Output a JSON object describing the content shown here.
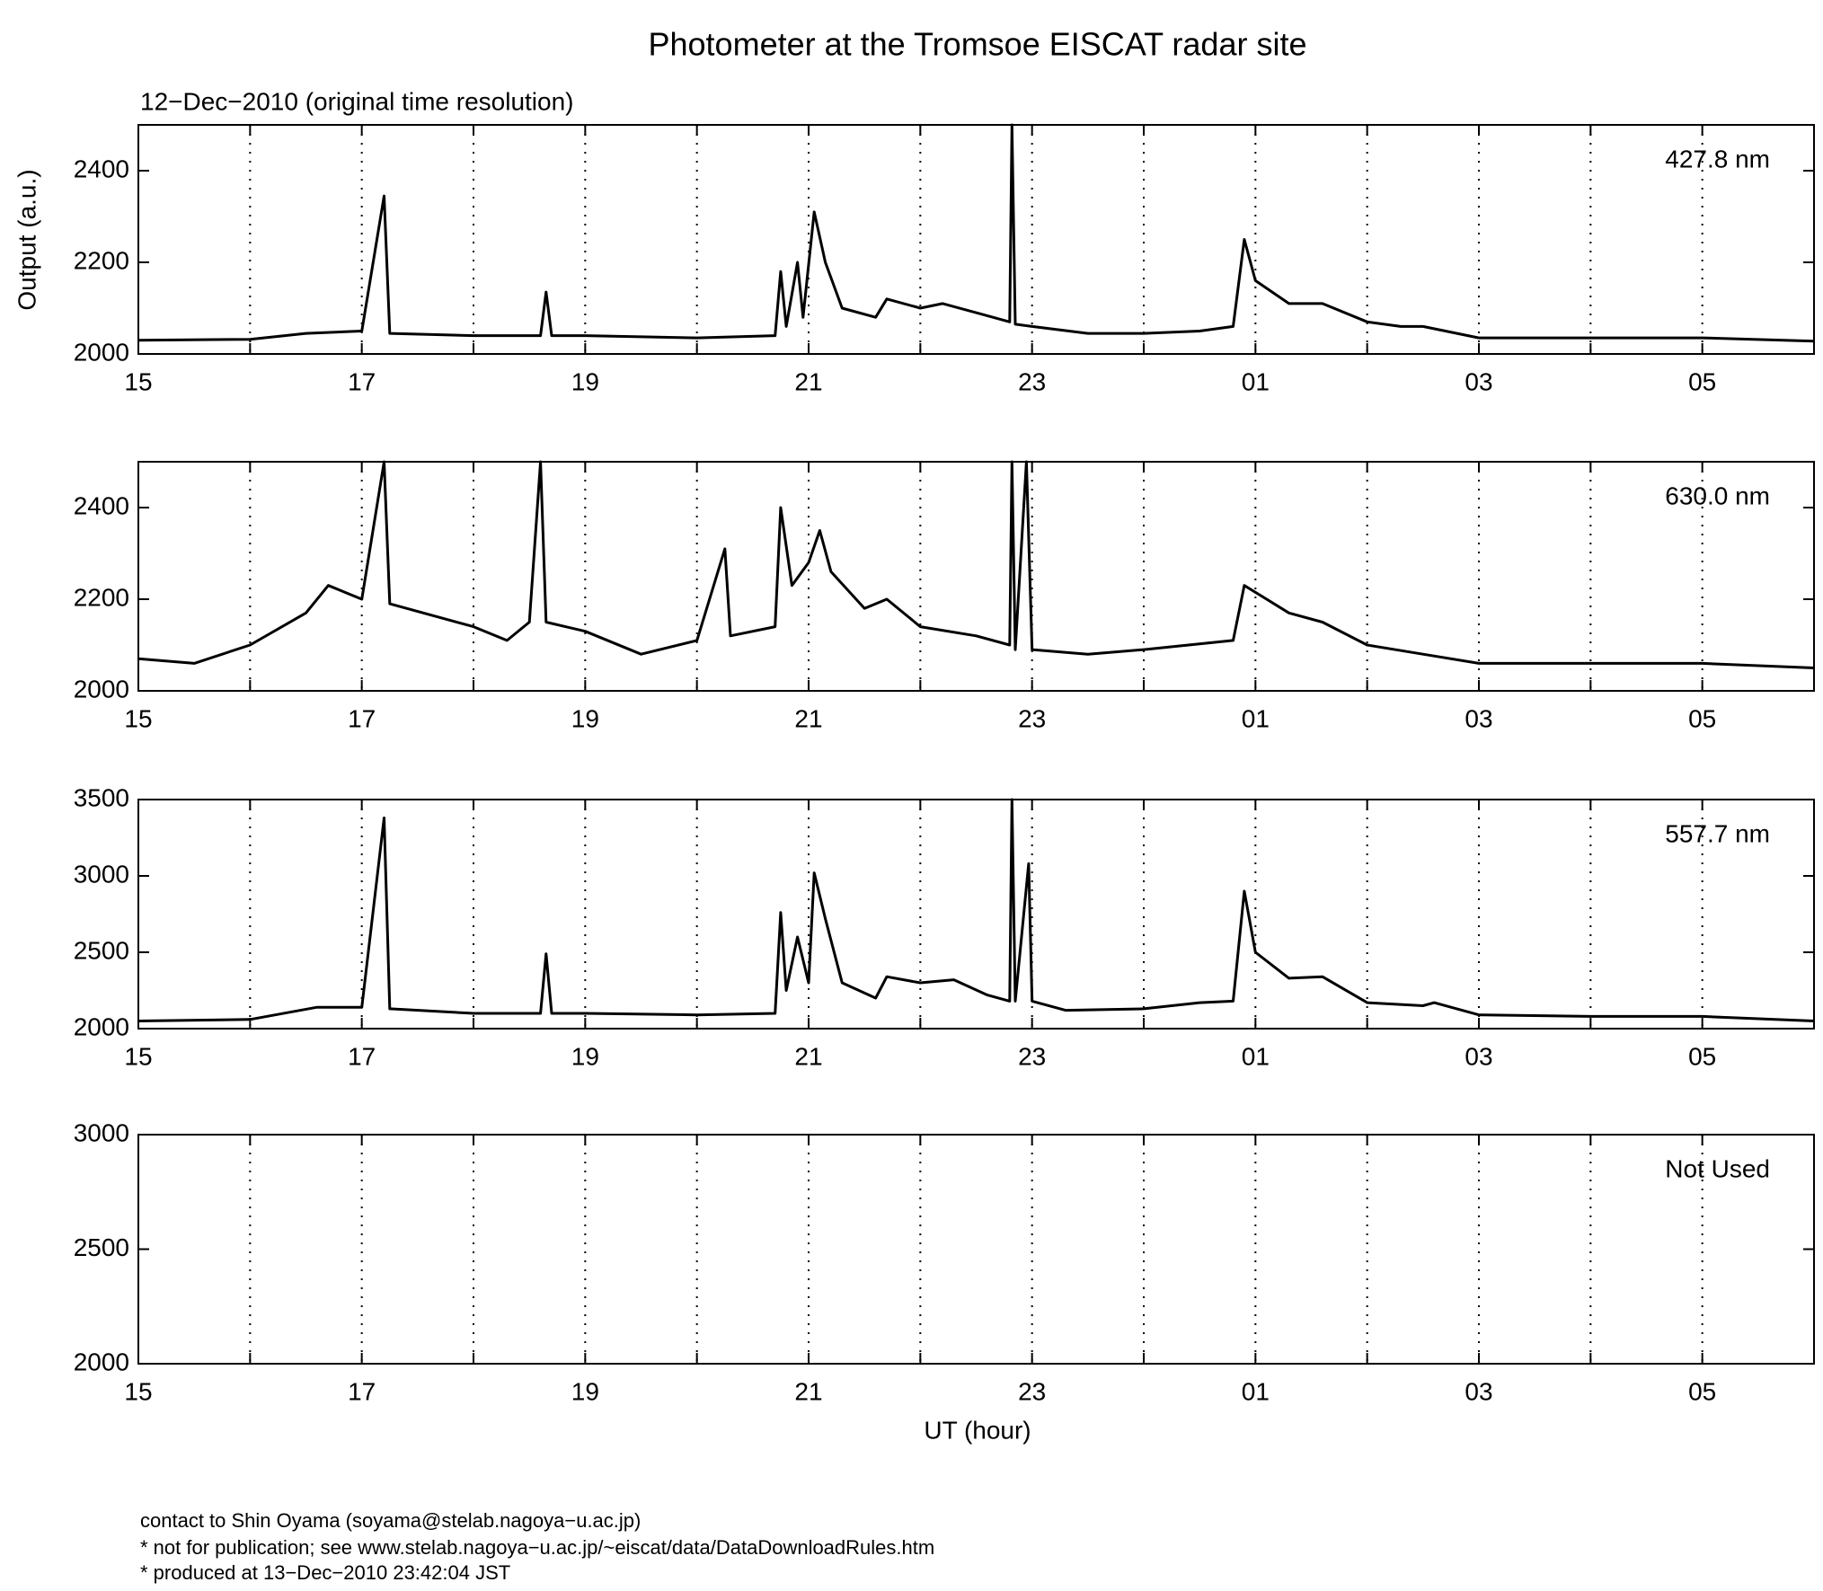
{
  "title": "Photometer at the Tromsoe EISCAT radar site",
  "subtitle": "12−Dec−2010 (original time resolution)",
  "ylabel": "Output (a.u.)",
  "xlabel": "UT (hour)",
  "footer": [
    "contact to Shin Oyama (soyama@stelab.nagoya−u.ac.jp)",
    "* not for publication; see www.stelab.nagoya−u.ac.jp/~eiscat/data/DataDownloadRules.htm",
    "* produced at 13−Dec−2010 23:42:04 JST"
  ],
  "chart_data": [
    {
      "type": "line",
      "label": "427.8 nm",
      "color": "#000000",
      "grid": true,
      "xlim": [
        15,
        30
      ],
      "xticks": [
        15,
        17,
        19,
        21,
        23,
        {
          "value": 25,
          "label": "01"
        },
        {
          "value": 27,
          "label": "03"
        },
        {
          "value": 29,
          "label": "05"
        }
      ],
      "xminorticks": [
        16,
        18,
        20,
        22,
        24,
        26,
        28
      ],
      "ylim": [
        2000,
        2500
      ],
      "yticks": [
        2000,
        2200,
        2400
      ],
      "x": [
        15,
        16,
        16.5,
        17,
        17.2,
        17.25,
        18,
        18.6,
        18.65,
        18.7,
        19,
        20,
        20.7,
        20.75,
        20.8,
        20.9,
        20.95,
        21.05,
        21.15,
        21.3,
        21.6,
        21.7,
        22,
        22.2,
        22.5,
        22.8,
        22.82,
        22.85,
        23,
        23.5,
        24,
        24.5,
        24.8,
        24.9,
        25,
        25.3,
        25.6,
        26,
        26.3,
        26.5,
        27,
        28,
        29,
        30
      ],
      "values": [
        2030,
        2032,
        2045,
        2050,
        2345,
        2045,
        2040,
        2040,
        2135,
        2040,
        2040,
        2035,
        2040,
        2180,
        2060,
        2200,
        2080,
        2310,
        2200,
        2100,
        2080,
        2120,
        2100,
        2110,
        2090,
        2070,
        2500,
        2065,
        2060,
        2045,
        2045,
        2050,
        2060,
        2250,
        2160,
        2110,
        2110,
        2070,
        2060,
        2060,
        2035,
        2035,
        2035,
        2028
      ]
    },
    {
      "type": "line",
      "label": "630.0 nm",
      "color": "#000000",
      "grid": true,
      "xlim": [
        15,
        30
      ],
      "xticks": [
        15,
        17,
        19,
        21,
        23,
        {
          "value": 25,
          "label": "01"
        },
        {
          "value": 27,
          "label": "03"
        },
        {
          "value": 29,
          "label": "05"
        }
      ],
      "xminorticks": [
        16,
        18,
        20,
        22,
        24,
        26,
        28
      ],
      "ylim": [
        2000,
        2500
      ],
      "yticks": [
        2000,
        2200,
        2400
      ],
      "x": [
        15,
        15.5,
        16,
        16.5,
        16.7,
        17,
        17.2,
        17.25,
        18,
        18.3,
        18.5,
        18.6,
        18.65,
        19,
        19.5,
        20,
        20.25,
        20.3,
        20.7,
        20.75,
        20.85,
        21,
        21.1,
        21.2,
        21.5,
        21.7,
        22,
        22.5,
        22.8,
        22.82,
        22.85,
        22.95,
        23,
        23.5,
        24,
        24.8,
        24.9,
        25.3,
        25.6,
        26,
        26.5,
        27,
        28,
        29,
        30
      ],
      "values": [
        2070,
        2060,
        2100,
        2170,
        2230,
        2200,
        2500,
        2190,
        2140,
        2110,
        2150,
        2500,
        2150,
        2130,
        2080,
        2110,
        2310,
        2120,
        2140,
        2400,
        2230,
        2280,
        2350,
        2260,
        2180,
        2200,
        2140,
        2120,
        2100,
        2500,
        2090,
        2500,
        2090,
        2080,
        2090,
        2110,
        2230,
        2170,
        2150,
        2100,
        2080,
        2060,
        2060,
        2060,
        2050
      ]
    },
    {
      "type": "line",
      "label": "557.7 nm",
      "color": "#000000",
      "grid": true,
      "xlim": [
        15,
        30
      ],
      "xticks": [
        15,
        17,
        19,
        21,
        23,
        {
          "value": 25,
          "label": "01"
        },
        {
          "value": 27,
          "label": "03"
        },
        {
          "value": 29,
          "label": "05"
        }
      ],
      "xminorticks": [
        16,
        18,
        20,
        22,
        24,
        26,
        28
      ],
      "ylim": [
        2000,
        3500
      ],
      "yticks": [
        2000,
        2500,
        3000,
        3500
      ],
      "x": [
        15,
        16,
        16.6,
        17,
        17.2,
        17.25,
        18,
        18.6,
        18.65,
        18.7,
        19,
        20,
        20.7,
        20.75,
        20.8,
        20.9,
        21,
        21.05,
        21.15,
        21.3,
        21.6,
        21.7,
        22,
        22.3,
        22.6,
        22.8,
        22.82,
        22.85,
        22.97,
        23,
        23.3,
        24,
        24.5,
        24.8,
        24.9,
        25,
        25.3,
        25.6,
        26,
        26.5,
        26.6,
        27,
        28,
        29,
        30
      ],
      "values": [
        2050,
        2060,
        2140,
        2140,
        3380,
        2130,
        2100,
        2100,
        2490,
        2100,
        2100,
        2090,
        2100,
        2760,
        2250,
        2600,
        2300,
        3020,
        2720,
        2300,
        2200,
        2340,
        2300,
        2320,
        2220,
        2180,
        3500,
        2180,
        3080,
        2180,
        2120,
        2130,
        2170,
        2180,
        2900,
        2500,
        2330,
        2340,
        2170,
        2150,
        2170,
        2090,
        2080,
        2080,
        2050
      ]
    },
    {
      "type": "line",
      "label": "Not Used",
      "color": "#000000",
      "grid": true,
      "xlim": [
        15,
        30
      ],
      "xticks": [
        15,
        17,
        19,
        21,
        23,
        {
          "value": 25,
          "label": "01"
        },
        {
          "value": 27,
          "label": "03"
        },
        {
          "value": 29,
          "label": "05"
        }
      ],
      "xminorticks": [
        16,
        18,
        20,
        22,
        24,
        26,
        28
      ],
      "ylim": [
        2000,
        3000
      ],
      "yticks": [
        2000,
        2500,
        3000
      ],
      "x": [],
      "values": []
    }
  ]
}
